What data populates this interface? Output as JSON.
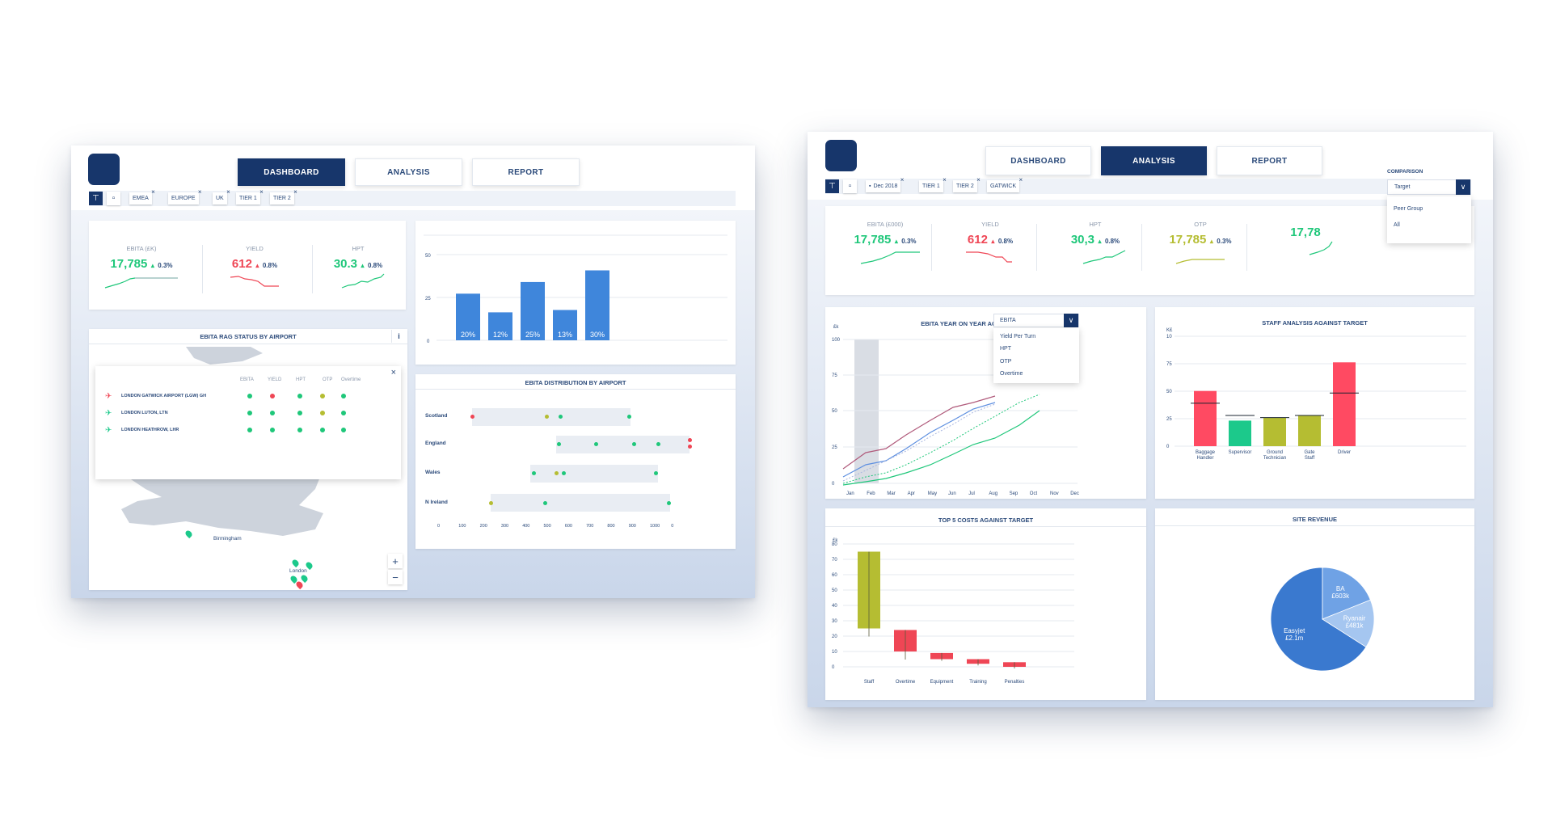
{
  "colors": {
    "navy": "#17366b",
    "green": "#1fc77a",
    "red": "#ef4655",
    "olive": "#b5bd32",
    "blue": "#3f86db",
    "pink": "#ff4a62",
    "teal": "#1cc98b"
  },
  "left": {
    "tabs": [
      "DASHBOARD",
      "ANALYSIS",
      "REPORT"
    ],
    "active_tab": "DASHBOARD",
    "filters": [
      "EMEA",
      "EUROPE",
      "UK",
      "TIER 1",
      "TIER 2"
    ],
    "kpis": [
      {
        "label": "EBITA (£K)",
        "value": "17,785",
        "pct": "0.3%",
        "color": "#1fc77a"
      },
      {
        "label": "YIELD",
        "value": "612",
        "pct": "0.8%",
        "color": "#ef4655"
      },
      {
        "label": "HPT",
        "value": "30.3",
        "pct": "0.8%",
        "color": "#1fc77a"
      }
    ],
    "rag": {
      "title": "EBITA RAG STATUS BY AIRPORT",
      "info": "i",
      "close": "×",
      "columns": [
        "EBITA",
        "YIELD",
        "HPT",
        "OTP",
        "Overtime"
      ],
      "rows": [
        {
          "name": "LONDON GATWICK AIRPORT (LGW) GH",
          "status": [
            "#1fc77a",
            "#ef4655",
            "#1fc77a",
            "#b5bd32",
            "#1fc77a"
          ],
          "icon_color": "#ef4655"
        },
        {
          "name": "LONDON LUTON, LTN",
          "status": [
            "#1fc77a",
            "#1fc77a",
            "#1fc77a",
            "#b5bd32",
            "#1fc77a"
          ],
          "icon_color": "#1cc98b"
        },
        {
          "name": "LONDON HEATHROW, LHR",
          "status": [
            "#1fc77a",
            "#1fc77a",
            "#1fc77a",
            "#1fc77a",
            "#1fc77a"
          ],
          "icon_color": "#1cc98b"
        }
      ],
      "map_labels": [
        "Birmingham",
        "London"
      ],
      "zoom_in": "+",
      "zoom_out": "−"
    },
    "bar_chart": {
      "y_ticks": [
        "50",
        "25",
        "0"
      ],
      "bars": [
        {
          "value": 20,
          "label": "20%"
        },
        {
          "value": 12,
          "label": "12%"
        },
        {
          "value": 25,
          "label": "25%"
        },
        {
          "value": 13,
          "label": "13%"
        },
        {
          "value": 30,
          "label": "30%"
        }
      ]
    },
    "dist": {
      "title": "EBITA DISTRIBUTION BY AIRPORT",
      "rows": [
        "Scotland",
        "England",
        "Wales",
        "N Ireland"
      ],
      "x_ticks": [
        "0",
        "100",
        "200",
        "300",
        "400",
        "500",
        "600",
        "700",
        "800",
        "900",
        "1000",
        "0"
      ]
    }
  },
  "right": {
    "tabs": [
      "DASHBOARD",
      "ANALYSIS",
      "REPORT"
    ],
    "active_tab": "ANALYSIS",
    "filters": [
      "Dec 2018",
      "TIER 1",
      "TIER 2",
      "GATWICK"
    ],
    "comparison": {
      "label": "COMPARISON",
      "selected": "Target",
      "options": [
        "Peer Group",
        "All"
      ]
    },
    "kpis": [
      {
        "label": "EBITA (£000)",
        "value": "17,785",
        "pct": "0.3%",
        "color": "#1fc77a"
      },
      {
        "label": "YIELD",
        "value": "612",
        "pct": "0.8%",
        "color": "#ef4655"
      },
      {
        "label": "HPT",
        "value": "30,3",
        "pct": "0.8%",
        "color": "#1fc77a"
      },
      {
        "label": "OTP",
        "value": "17,785",
        "pct": "0.3%",
        "color": "#b5bd32"
      },
      {
        "label": "",
        "value": "17,78",
        "pct": "",
        "color": "#1fc77a"
      }
    ],
    "yoy": {
      "title": "EBITA YEAR ON YEAR AGAINST TARGET",
      "unit": "£k",
      "dropdown_selected": "EBITA",
      "dropdown_options": [
        "Yield Per Turn",
        "HPT",
        "OTP",
        "Overtime"
      ],
      "y_ticks": [
        "100",
        "75",
        "50",
        "25",
        "0"
      ],
      "x_ticks": [
        "Jan",
        "Feb",
        "Mar",
        "Apr",
        "May",
        "Jun",
        "Jul",
        "Aug",
        "Sep",
        "Oct",
        "Nov",
        "Dec"
      ]
    },
    "staff": {
      "title": "STAFF ANALYSIS AGAINST TARGET",
      "unit": "K£",
      "y_ticks": [
        "10",
        "75",
        "50",
        "25",
        "0"
      ],
      "bars": [
        {
          "label": "Baggage Handler",
          "value": 54,
          "target": 42,
          "color": "#ff4a62"
        },
        {
          "label": "Supervisor",
          "value": 25,
          "target": 30,
          "color": "#1cc98b"
        },
        {
          "label": "Ground Technician",
          "value": 28,
          "target": 28,
          "color": "#b5bd32"
        },
        {
          "label": "Gate Staff",
          "value": 30,
          "target": 30,
          "color": "#b5bd32"
        },
        {
          "label": "Driver",
          "value": 82,
          "target": 52,
          "color": "#ff4a62"
        }
      ]
    },
    "costs": {
      "title": "TOP 5 COSTS AGAINST TARGET",
      "unit": "£k",
      "y_ticks": [
        "80",
        "70",
        "60",
        "50",
        "40",
        "30",
        "20",
        "10",
        "0"
      ],
      "items": [
        {
          "label": "Staff",
          "top": 75,
          "bottom": 25,
          "color": "#b5bd32"
        },
        {
          "label": "Overtime",
          "top": 24,
          "bottom": 10,
          "color": "#ef4655"
        },
        {
          "label": "Equipment",
          "top": 9,
          "bottom": 5,
          "color": "#ef4655"
        },
        {
          "label": "Training",
          "top": 5,
          "bottom": 2,
          "color": "#ef4655"
        },
        {
          "label": "Penalties",
          "top": 3,
          "bottom": 0,
          "color": "#ef4655"
        }
      ]
    },
    "revenue": {
      "title": "SITE REVENUE",
      "slices": [
        {
          "name": "Easyjet",
          "value_label": "£2.1m",
          "value": 2.1,
          "color": "#3a79cf"
        },
        {
          "name": "BA",
          "value_label": "£603k",
          "value": 0.603,
          "color": "#6fa2e5"
        },
        {
          "name": "Ryanair",
          "value_label": "£481k",
          "value": 0.481,
          "color": "#a5c6f0"
        }
      ]
    }
  }
}
